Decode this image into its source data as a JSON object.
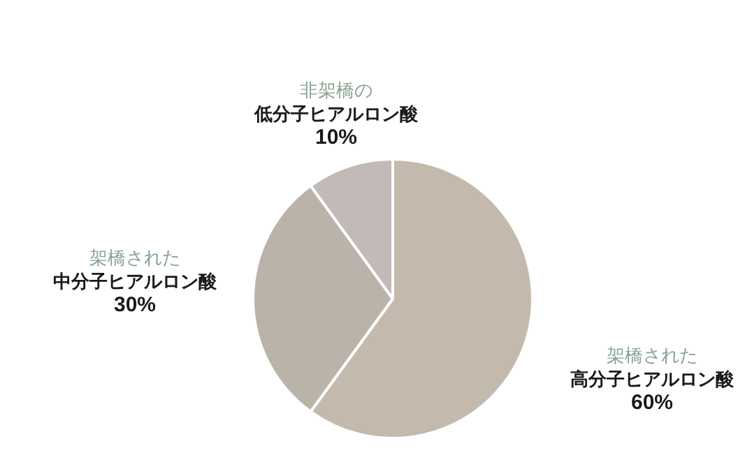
{
  "chart_data": {
    "type": "pie",
    "categories": [
      "架橋された高分子ヒアルロン酸",
      "架橋された中分子ヒアルロン酸",
      "非架橋の低分子ヒアルロン酸"
    ],
    "values": [
      60,
      30,
      10
    ],
    "colors": [
      "#c4b9ad",
      "#b9b3aa",
      "#c2bab6"
    ],
    "value_labels": [
      "60%",
      "30%",
      "10%"
    ],
    "legend": false
  }
}
